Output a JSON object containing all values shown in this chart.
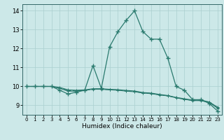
{
  "title": "",
  "xlabel": "Humidex (Indice chaleur)",
  "bg_color": "#cce8e8",
  "line_color": "#2a7a6e",
  "xlim": [
    -0.5,
    23.5
  ],
  "ylim": [
    8.5,
    14.35
  ],
  "yticks": [
    9,
    10,
    11,
    12,
    13,
    14
  ],
  "xticks": [
    0,
    1,
    2,
    3,
    4,
    5,
    6,
    7,
    8,
    9,
    10,
    11,
    12,
    13,
    14,
    15,
    16,
    17,
    18,
    19,
    20,
    21,
    22,
    23
  ],
  "line1_x": [
    0,
    1,
    2,
    3,
    4,
    5,
    6,
    7,
    8,
    9,
    10,
    11,
    12,
    13,
    14,
    15,
    16,
    17,
    18,
    19,
    20,
    21,
    22,
    23
  ],
  "line1_y": [
    10.0,
    10.0,
    10.0,
    10.0,
    9.8,
    9.6,
    9.7,
    9.8,
    11.1,
    9.9,
    12.1,
    12.9,
    13.5,
    14.0,
    12.9,
    12.5,
    12.5,
    11.5,
    10.0,
    9.8,
    9.3,
    9.3,
    9.1,
    8.7
  ],
  "line2_x": [
    0,
    1,
    2,
    3,
    4,
    5,
    6,
    7,
    8,
    9,
    10,
    11,
    12,
    13,
    14,
    15,
    16,
    17,
    18,
    19,
    20,
    21,
    22,
    23
  ],
  "line2_y": [
    10.0,
    10.0,
    10.0,
    10.0,
    9.9,
    9.75,
    9.75,
    9.8,
    9.85,
    9.85,
    9.82,
    9.8,
    9.75,
    9.72,
    9.65,
    9.62,
    9.55,
    9.5,
    9.4,
    9.32,
    9.25,
    9.25,
    9.15,
    8.85
  ],
  "line3_x": [
    0,
    1,
    2,
    3,
    4,
    5,
    6,
    7,
    8,
    9,
    10,
    11,
    12,
    13,
    14,
    15,
    16,
    17,
    18,
    19,
    20,
    21,
    22,
    23
  ],
  "line3_y": [
    10.0,
    10.0,
    10.0,
    10.0,
    9.95,
    9.82,
    9.8,
    9.82,
    9.88,
    9.88,
    9.85,
    9.83,
    9.79,
    9.76,
    9.68,
    9.65,
    9.58,
    9.52,
    9.42,
    9.35,
    9.28,
    9.28,
    9.18,
    8.9
  ],
  "line4_x": [
    0,
    1,
    2,
    3,
    4,
    5,
    6,
    7,
    8,
    9,
    10,
    11,
    12,
    13,
    14,
    15,
    16,
    17,
    18,
    19,
    20,
    21,
    22,
    23
  ],
  "line4_y": [
    10.0,
    10.0,
    10.0,
    10.0,
    9.92,
    9.78,
    9.77,
    9.79,
    9.86,
    9.86,
    9.83,
    9.81,
    9.77,
    9.74,
    9.66,
    9.63,
    9.56,
    9.51,
    9.41,
    9.33,
    9.26,
    9.26,
    9.16,
    8.88
  ]
}
